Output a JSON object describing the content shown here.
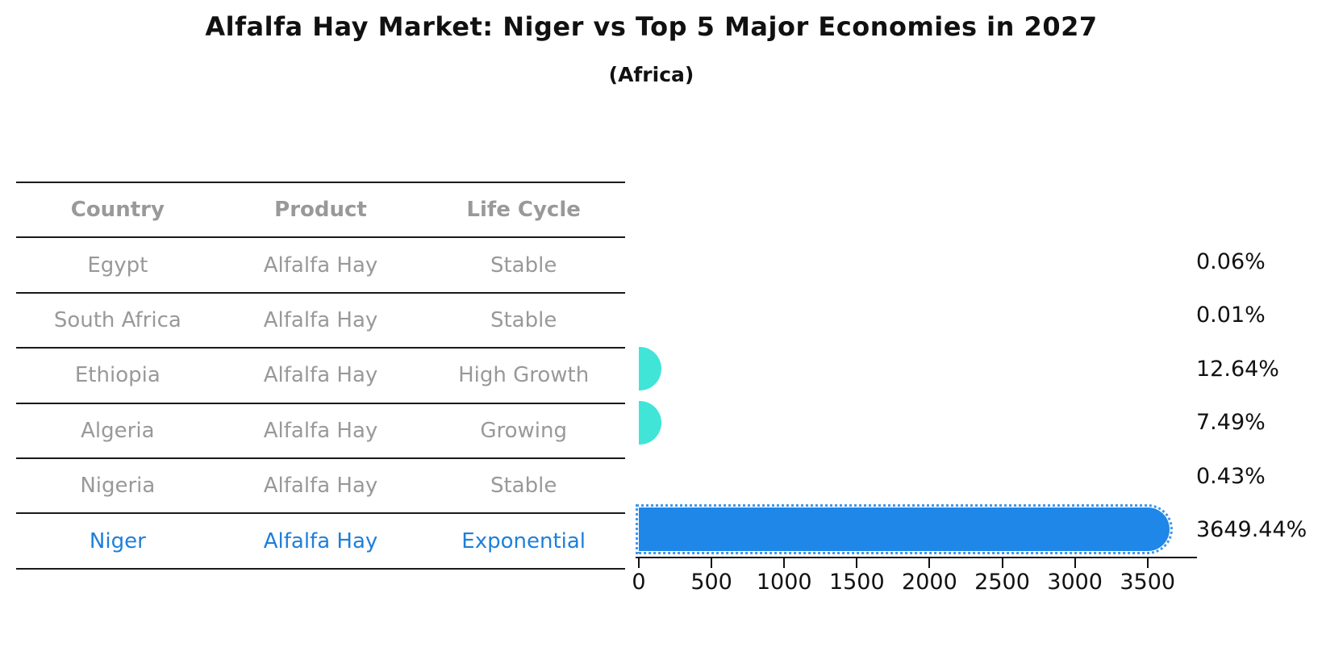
{
  "title": "Alfalfa Hay Market: Niger vs Top 5 Major Economies in 2027",
  "subtitle": "(Africa)",
  "table": {
    "headers": [
      "Country",
      "Product",
      "Life Cycle"
    ],
    "rows": [
      {
        "country": "Egypt",
        "product": "Alfalfa Hay",
        "life_cycle": "Stable",
        "value_label": "0.06%"
      },
      {
        "country": "South Africa",
        "product": "Alfalfa Hay",
        "life_cycle": "Stable",
        "value_label": "0.01%"
      },
      {
        "country": "Ethiopia",
        "product": "Alfalfa Hay",
        "life_cycle": "High Growth",
        "value_label": "12.64%"
      },
      {
        "country": "Algeria",
        "product": "Alfalfa Hay",
        "life_cycle": "Growing",
        "value_label": "7.49%"
      },
      {
        "country": "Nigeria",
        "product": "Alfalfa Hay",
        "life_cycle": "Stable",
        "value_label": "0.43%"
      },
      {
        "country": "Niger",
        "product": "Alfalfa Hay",
        "life_cycle": "Exponential",
        "value_label": "3649.44%"
      }
    ]
  },
  "chart_data": {
    "type": "bar",
    "orientation": "horizontal",
    "title": "Alfalfa Hay Market: Niger vs Top 5 Major Economies in 2027",
    "subtitle": "(Africa)",
    "categories": [
      "Egypt",
      "South Africa",
      "Ethiopia",
      "Algeria",
      "Nigeria",
      "Niger"
    ],
    "values": [
      0.06,
      0.01,
      12.64,
      7.49,
      0.43,
      3649.44
    ],
    "value_labels": [
      "0.06%",
      "0.01%",
      "12.64%",
      "7.49%",
      "0.43%",
      "3649.44%"
    ],
    "xticks": [
      0,
      500,
      1000,
      1500,
      2000,
      2500,
      3000,
      3500
    ],
    "xlim": [
      0,
      3840
    ],
    "grid": false,
    "legend_position": "none",
    "bar_colors": [
      "#40E5D8",
      "#40E5D8",
      "#40E5D8",
      "#40E5D8",
      "#40E5D8",
      "#1E87E8"
    ],
    "highlight_index": 5
  },
  "colors": {
    "accent_blue": "#1E87E8",
    "accent_cyan": "#40E5D8",
    "row_text": "#999999",
    "header_text": "#111111",
    "highlight_text": "#1E7FD9"
  }
}
